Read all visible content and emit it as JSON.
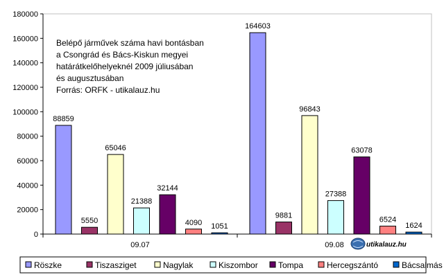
{
  "chart_data": {
    "type": "bar",
    "categories": [
      "09.07",
      "09.08"
    ],
    "series": [
      {
        "name": "Röszke",
        "color": "#9999ff",
        "values": [
          88859,
          164603
        ]
      },
      {
        "name": "Tiszasziget",
        "color": "#993366",
        "values": [
          5550,
          9881
        ]
      },
      {
        "name": "Nagylak",
        "color": "#ffffcc",
        "values": [
          65046,
          96843
        ]
      },
      {
        "name": "Kiszombor",
        "color": "#ccffff",
        "values": [
          21388,
          27388
        ]
      },
      {
        "name": "Tompa",
        "color": "#660066",
        "values": [
          32144,
          63078
        ]
      },
      {
        "name": "Hercegszántó",
        "color": "#ff8080",
        "values": [
          4090,
          6524
        ]
      },
      {
        "name": "Bácsalmás",
        "color": "#0066cc",
        "values": [
          1051,
          1624
        ]
      }
    ],
    "ylim": [
      0,
      180000
    ],
    "yticks": [
      0,
      20000,
      40000,
      60000,
      80000,
      100000,
      120000,
      140000,
      160000,
      180000
    ],
    "grid": false,
    "legend_position": "bottom",
    "annotation": [
      "Belépő járművek száma havi bontásban",
      "a Csongrád és Bács-Kiskun megyei",
      "határátkelőhelyeknél 2009 júliusában",
      "és augusztusában",
      "Forrás: ORFK - utikalauz.hu"
    ]
  },
  "watermark": {
    "text": "utikalauz.hu"
  }
}
